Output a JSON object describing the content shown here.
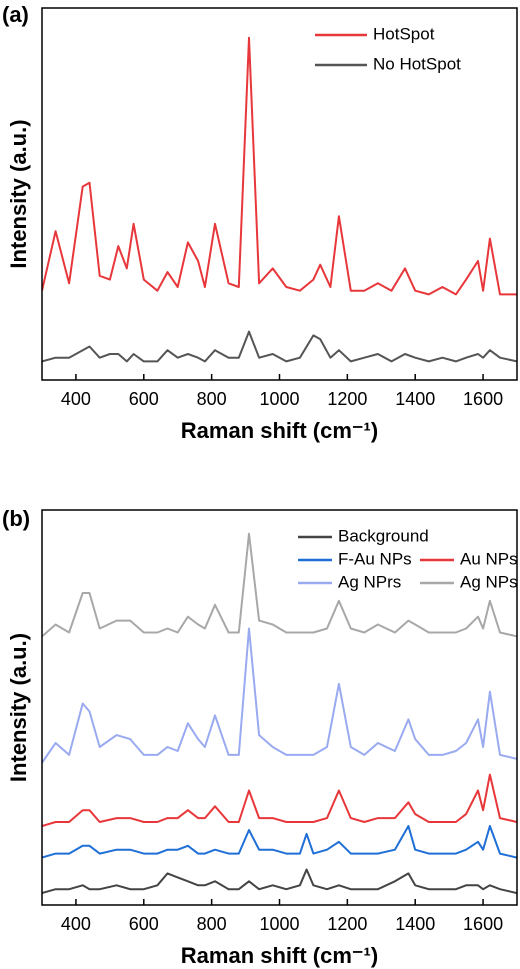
{
  "chart_data": [
    {
      "type": "line",
      "label": "(a)",
      "xlabel": "Raman shift (cm⁻¹)",
      "ylabel": "Intensity (a.u.)",
      "xlim": [
        300,
        1700
      ],
      "xticks": [
        400,
        600,
        800,
        1000,
        1200,
        1400,
        1600
      ],
      "ylim": [
        0,
        100
      ],
      "x": [
        300,
        340,
        380,
        420,
        440,
        470,
        500,
        525,
        550,
        570,
        600,
        640,
        670,
        700,
        730,
        760,
        780,
        810,
        850,
        880,
        910,
        940,
        980,
        1020,
        1060,
        1100,
        1120,
        1150,
        1175,
        1210,
        1250,
        1290,
        1330,
        1370,
        1400,
        1440,
        1480,
        1520,
        1550,
        1585,
        1600,
        1620,
        1650,
        1700
      ],
      "series": [
        {
          "name": "HotSpot",
          "color": "#e8373a",
          "values": [
            24,
            40,
            26,
            52,
            53,
            28,
            27,
            36,
            30,
            42,
            27,
            24,
            29,
            25,
            37,
            32,
            25,
            42,
            26,
            25,
            92,
            26,
            30,
            25,
            24,
            27,
            31,
            25,
            44,
            24,
            24,
            26,
            24,
            30,
            24,
            23,
            25,
            23,
            27,
            32,
            24,
            38,
            23,
            23
          ]
        },
        {
          "name": "No HotSpot",
          "color": "#555555",
          "values": [
            5,
            6,
            6,
            8,
            9,
            6,
            7,
            7,
            5,
            7,
            5,
            5,
            8,
            6,
            7,
            6,
            5,
            8,
            6,
            6,
            13,
            6,
            7,
            5,
            6,
            12,
            11,
            6,
            8,
            5,
            6,
            7,
            5,
            7,
            6,
            5,
            6,
            5,
            6,
            7,
            6,
            8,
            6,
            5
          ]
        }
      ]
    },
    {
      "type": "line",
      "label": "(b)",
      "xlabel": "Raman shift (cm⁻¹)",
      "ylabel": "Intensity (a.u.)",
      "xlim": [
        300,
        1700
      ],
      "xticks": [
        400,
        600,
        800,
        1000,
        1200,
        1400,
        1600
      ],
      "ylim": [
        0,
        100
      ],
      "x": [
        300,
        340,
        380,
        420,
        440,
        470,
        520,
        560,
        600,
        640,
        670,
        700,
        730,
        760,
        780,
        810,
        850,
        880,
        910,
        940,
        980,
        1020,
        1060,
        1080,
        1100,
        1140,
        1175,
        1210,
        1250,
        1290,
        1340,
        1380,
        1400,
        1440,
        1480,
        1520,
        1550,
        1585,
        1600,
        1620,
        1650,
        1700
      ],
      "series": [
        {
          "name": "Background",
          "color": "#444444",
          "values": [
            3,
            4,
            4,
            5,
            4,
            4,
            5,
            4,
            4,
            5,
            8,
            7,
            6,
            5,
            5,
            6,
            4,
            4,
            6,
            4,
            5,
            4,
            5,
            9,
            5,
            4,
            5,
            4,
            4,
            4,
            6,
            8,
            5,
            4,
            4,
            4,
            5,
            5,
            4,
            5,
            4,
            3
          ]
        },
        {
          "name": "F-Au NPs",
          "color": "#1f6fd6",
          "values": [
            12,
            13,
            13,
            15,
            15,
            13,
            14,
            14,
            13,
            13,
            14,
            14,
            15,
            13,
            13,
            14,
            13,
            13,
            19,
            14,
            14,
            13,
            13,
            18,
            13,
            14,
            16,
            13,
            13,
            13,
            14,
            20,
            14,
            13,
            13,
            13,
            14,
            16,
            14,
            20,
            13,
            12
          ]
        },
        {
          "name": "Au NPs",
          "color": "#e8373a",
          "values": [
            20,
            21,
            21,
            24,
            24,
            21,
            22,
            22,
            21,
            21,
            22,
            22,
            24,
            22,
            22,
            25,
            21,
            21,
            29,
            22,
            22,
            21,
            21,
            21,
            21,
            22,
            29,
            22,
            21,
            22,
            22,
            26,
            23,
            21,
            21,
            21,
            23,
            29,
            24,
            33,
            22,
            21
          ]
        },
        {
          "name": "Ag NPrs",
          "color": "#99aaf0",
          "values": [
            36,
            41,
            38,
            51,
            49,
            40,
            43,
            42,
            38,
            38,
            40,
            39,
            46,
            42,
            40,
            48,
            38,
            38,
            70,
            43,
            40,
            38,
            38,
            38,
            38,
            40,
            56,
            40,
            38,
            41,
            39,
            47,
            42,
            38,
            38,
            39,
            41,
            47,
            40,
            54,
            38,
            37
          ]
        },
        {
          "name": "Ag NPs",
          "color": "#a8a8a8",
          "values": [
            68,
            71,
            69,
            79,
            79,
            70,
            72,
            72,
            69,
            69,
            70,
            69,
            73,
            71,
            70,
            76,
            69,
            69,
            94,
            72,
            71,
            69,
            69,
            69,
            69,
            70,
            77,
            70,
            69,
            71,
            69,
            72,
            71,
            69,
            69,
            69,
            70,
            73,
            70,
            77,
            69,
            68
          ]
        }
      ]
    }
  ]
}
